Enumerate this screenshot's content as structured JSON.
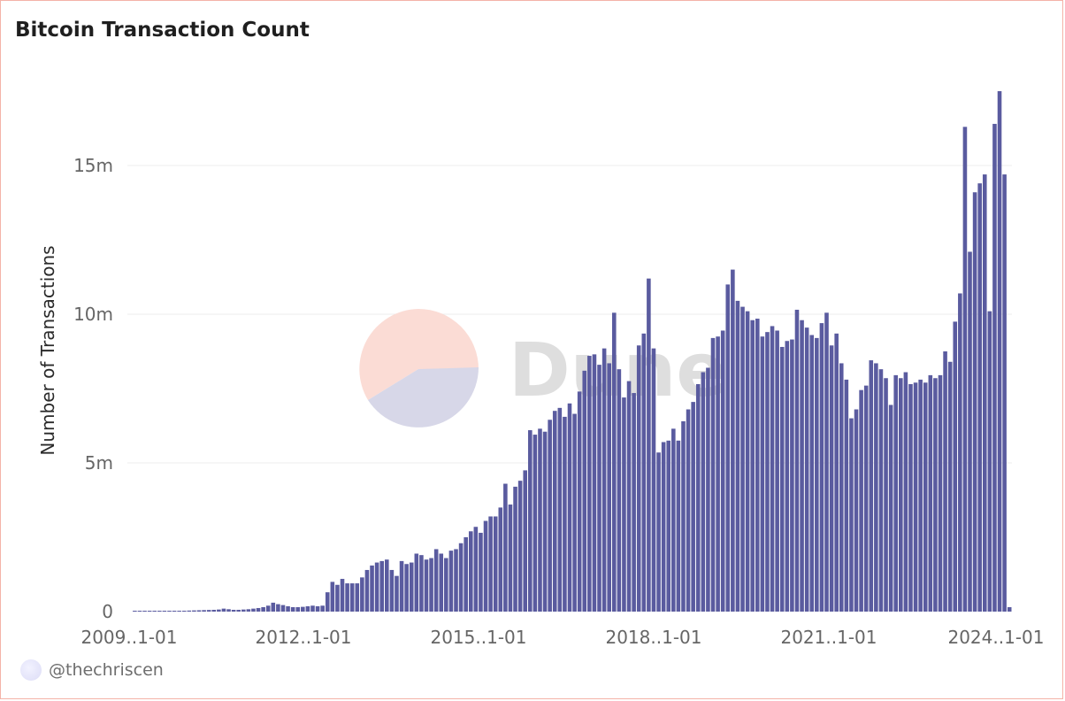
{
  "title": "Bitcoin Transaction Count",
  "author": "@thechriscen",
  "watermark": "Dune",
  "colors": {
    "bar": "#5a5b9f",
    "border": "#f4b3a8",
    "grid": "#ececec"
  },
  "chart_data": {
    "type": "bar",
    "title": "Bitcoin Transaction Count",
    "xlabel": "",
    "ylabel": "Number of Transactions",
    "interval": "monthly",
    "x_start": "2009-01",
    "x_ticks": [
      "2009..1-01",
      "2012..1-01",
      "2015..1-01",
      "2018..1-01",
      "2021..1-01",
      "2024..1-01"
    ],
    "y_ticks": [
      "0",
      "5m",
      "10m",
      "15m"
    ],
    "y_tick_values": [
      0,
      5000000,
      10000000,
      15000000
    ],
    "ylim": [
      0,
      18000000
    ],
    "grid": true,
    "values": [
      0,
      2000,
      5000,
      8000,
      10000,
      12000,
      15000,
      18000,
      20000,
      22000,
      24000,
      30000,
      35000,
      40000,
      45000,
      50000,
      55000,
      60000,
      70000,
      100000,
      80000,
      60000,
      60000,
      70000,
      80000,
      100000,
      120000,
      150000,
      200000,
      300000,
      250000,
      220000,
      180000,
      150000,
      150000,
      160000,
      180000,
      200000,
      180000,
      200000,
      650000,
      1000000,
      900000,
      1100000,
      950000,
      950000,
      950000,
      1150000,
      1400000,
      1550000,
      1650000,
      1700000,
      1750000,
      1400000,
      1200000,
      1700000,
      1600000,
      1650000,
      1950000,
      1900000,
      1750000,
      1800000,
      2100000,
      1950000,
      1800000,
      2050000,
      2100000,
      2300000,
      2500000,
      2700000,
      2850000,
      2650000,
      3050000,
      3200000,
      3200000,
      3500000,
      4300000,
      3600000,
      4200000,
      4400000,
      4750000,
      6100000,
      5950000,
      6150000,
      6050000,
      6450000,
      6750000,
      6850000,
      6550000,
      7000000,
      6650000,
      7400000,
      8100000,
      8600000,
      8650000,
      8300000,
      8850000,
      8350000,
      10050000,
      8150000,
      7200000,
      7750000,
      7350000,
      8950000,
      9350000,
      11200000,
      8850000,
      5350000,
      5700000,
      5750000,
      6150000,
      5750000,
      6400000,
      6800000,
      7050000,
      7650000,
      8050000,
      8200000,
      9200000,
      9250000,
      9450000,
      11000000,
      11500000,
      10450000,
      10250000,
      10100000,
      9800000,
      9850000,
      9250000,
      9400000,
      9600000,
      9450000,
      8900000,
      9100000,
      9150000,
      10150000,
      9800000,
      9550000,
      9300000,
      9200000,
      9700000,
      10050000,
      8950000,
      9350000,
      8350000,
      7800000,
      6500000,
      6800000,
      7450000,
      7600000,
      8450000,
      8350000,
      8150000,
      7850000,
      6950000,
      7950000,
      7850000,
      8050000,
      7650000,
      7700000,
      7800000,
      7700000,
      7950000,
      7850000,
      7950000,
      8750000,
      8400000,
      9750000,
      10700000,
      16300000,
      12100000,
      14100000,
      14400000,
      14700000,
      10100000,
      16400000,
      17500000,
      14700000,
      150000
    ]
  }
}
